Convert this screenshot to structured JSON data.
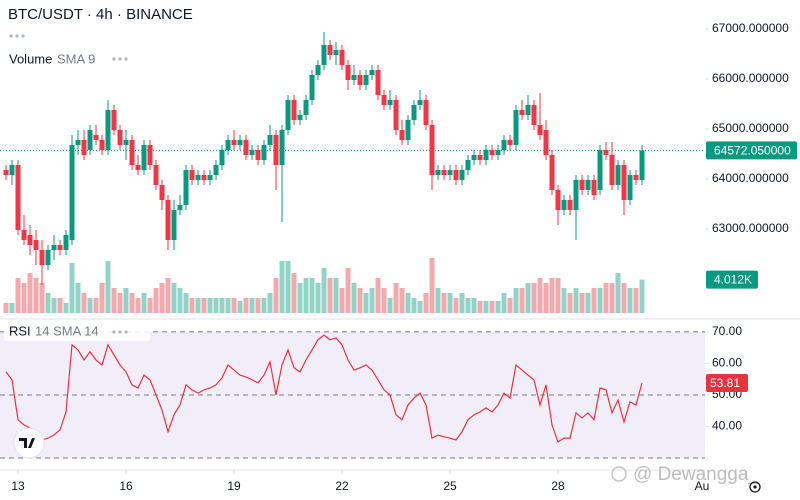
{
  "chart_data": [
    {
      "type": "candlestick",
      "title": "BTC/USDT · 4h · BINANCE",
      "volume_title": "Volume",
      "volume_subtitle": "SMA 9",
      "up_color": "#089981",
      "down_color": "#f23645",
      "volume_up_color": "#92d3c8",
      "volume_down_color": "#f3a9ad",
      "xlim": [
        -1,
        116.5
      ],
      "xticks": [
        {
          "value": 2,
          "label": "13"
        },
        {
          "value": 20,
          "label": "16"
        },
        {
          "value": 38,
          "label": "19"
        },
        {
          "value": 56,
          "label": "22"
        },
        {
          "value": 74,
          "label": "25"
        },
        {
          "value": 92,
          "label": "28"
        },
        {
          "value": 116,
          "label": "Au"
        }
      ],
      "ylim": [
        61320,
        67580
      ],
      "yticks": [
        {
          "value": 63000,
          "label": "63000.000000"
        },
        {
          "value": 64000,
          "label": "64000.000000"
        },
        {
          "value": 65000,
          "label": "65000.000000"
        },
        {
          "value": 66000,
          "label": "66000.000000"
        },
        {
          "value": 67000,
          "label": "67000.000000"
        }
      ],
      "volume_ylim": [
        0,
        12000
      ],
      "close_label": "64572.050000",
      "volume_label": "4.012K",
      "candles": [
        [
          64180,
          64280,
          63980,
          64080
        ],
        [
          64080,
          64380,
          63880,
          64280
        ],
        [
          64280,
          64380,
          62880,
          62980
        ],
        [
          62980,
          63280,
          62680,
          62780
        ],
        [
          62880,
          63080,
          62480,
          62680
        ],
        [
          62780,
          62980,
          62280,
          62580
        ],
        [
          62580,
          62780,
          61880,
          62280
        ],
        [
          62280,
          62680,
          62180,
          62580
        ],
        [
          62580,
          62880,
          62380,
          62680
        ],
        [
          62680,
          62780,
          62480,
          62580
        ],
        [
          62580,
          62980,
          62480,
          62880
        ],
        [
          62780,
          64880,
          62680,
          64680
        ],
        [
          64680,
          64980,
          64480,
          64780
        ],
        [
          64780,
          64980,
          64380,
          64480
        ],
        [
          64580,
          65080,
          64480,
          64980
        ],
        [
          64880,
          65080,
          64680,
          64780
        ],
        [
          64780,
          64880,
          64480,
          64580
        ],
        [
          64580,
          65580,
          64480,
          65380
        ],
        [
          65380,
          65480,
          64880,
          64980
        ],
        [
          64980,
          65080,
          64580,
          64680
        ],
        [
          64680,
          64980,
          64380,
          64780
        ],
        [
          64780,
          64880,
          64180,
          64280
        ],
        [
          64280,
          64480,
          64080,
          64180
        ],
        [
          64180,
          64780,
          64080,
          64680
        ],
        [
          64680,
          64780,
          64180,
          64280
        ],
        [
          64280,
          64380,
          63780,
          63880
        ],
        [
          63880,
          63980,
          63380,
          63580
        ],
        [
          63580,
          63680,
          62580,
          62780
        ],
        [
          62780,
          63580,
          62580,
          63380
        ],
        [
          63380,
          63680,
          63280,
          63480
        ],
        [
          63480,
          64280,
          63380,
          64180
        ],
        [
          64180,
          64280,
          63880,
          63980
        ],
        [
          63980,
          64180,
          63880,
          64080
        ],
        [
          64080,
          64180,
          63880,
          63980
        ],
        [
          63980,
          64180,
          63880,
          64080
        ],
        [
          64080,
          64380,
          63980,
          64280
        ],
        [
          64280,
          64680,
          64180,
          64580
        ],
        [
          64580,
          64880,
          64480,
          64780
        ],
        [
          64780,
          64980,
          64580,
          64680
        ],
        [
          64680,
          64880,
          64580,
          64780
        ],
        [
          64780,
          64880,
          64380,
          64480
        ],
        [
          64480,
          64680,
          64380,
          64580
        ],
        [
          64580,
          64680,
          64280,
          64380
        ],
        [
          64380,
          64780,
          64280,
          64680
        ],
        [
          64680,
          65080,
          64580,
          64880
        ],
        [
          64880,
          64980,
          63780,
          64280
        ],
        [
          64280,
          65080,
          63140,
          64980
        ],
        [
          64980,
          65680,
          64880,
          65580
        ],
        [
          65580,
          65680,
          65080,
          65180
        ],
        [
          65180,
          65380,
          65080,
          65280
        ],
        [
          65280,
          65680,
          65180,
          65580
        ],
        [
          65580,
          66180,
          65480,
          66080
        ],
        [
          66080,
          66380,
          65980,
          66280
        ],
        [
          66280,
          66940,
          66180,
          66680
        ],
        [
          66680,
          66780,
          66380,
          66480
        ],
        [
          66480,
          66740,
          66280,
          66580
        ],
        [
          66580,
          66680,
          66180,
          66280
        ],
        [
          66280,
          66380,
          65780,
          65980
        ],
        [
          65980,
          66280,
          65880,
          66080
        ],
        [
          66080,
          66180,
          65780,
          65880
        ],
        [
          65880,
          66180,
          65780,
          66080
        ],
        [
          66080,
          66280,
          65980,
          66180
        ],
        [
          66180,
          66280,
          65580,
          65680
        ],
        [
          65680,
          65780,
          65380,
          65480
        ],
        [
          65480,
          65780,
          65380,
          65580
        ],
        [
          65580,
          65680,
          64880,
          64980
        ],
        [
          64980,
          65180,
          64680,
          64780
        ],
        [
          64780,
          65280,
          64680,
          65180
        ],
        [
          65180,
          65580,
          65080,
          65480
        ],
        [
          65480,
          65780,
          65380,
          65580
        ],
        [
          65580,
          65680,
          64980,
          65080
        ],
        [
          65080,
          65180,
          63780,
          64080
        ],
        [
          64080,
          64280,
          63980,
          64180
        ],
        [
          64180,
          64280,
          63980,
          64080
        ],
        [
          64080,
          64280,
          63980,
          64180
        ],
        [
          64180,
          64280,
          63880,
          63980
        ],
        [
          63980,
          64280,
          63880,
          64180
        ],
        [
          64180,
          64480,
          64080,
          64380
        ],
        [
          64380,
          64580,
          64280,
          64480
        ],
        [
          64480,
          64580,
          64280,
          64380
        ],
        [
          64380,
          64680,
          64280,
          64580
        ],
        [
          64580,
          64680,
          64380,
          64480
        ],
        [
          64480,
          64680,
          64380,
          64580
        ],
        [
          64580,
          64880,
          64480,
          64780
        ],
        [
          64780,
          64880,
          64580,
          64680
        ],
        [
          64680,
          65480,
          64580,
          65380
        ],
        [
          65380,
          65580,
          65180,
          65280
        ],
        [
          65280,
          65680,
          65180,
          65480
        ],
        [
          65480,
          65580,
          64980,
          65080
        ],
        [
          65080,
          65720,
          64780,
          64880
        ],
        [
          64980,
          65180,
          64380,
          64480
        ],
        [
          64480,
          64580,
          63680,
          63780
        ],
        [
          63780,
          63880,
          63080,
          63380
        ],
        [
          63380,
          63680,
          63280,
          63580
        ],
        [
          63580,
          63680,
          63280,
          63380
        ],
        [
          63380,
          64080,
          62780,
          63980
        ],
        [
          63980,
          64080,
          63680,
          63780
        ],
        [
          63780,
          64080,
          63680,
          63980
        ],
        [
          63980,
          64080,
          63580,
          63680
        ],
        [
          63780,
          64680,
          63680,
          64580
        ],
        [
          64580,
          64740,
          64380,
          64480
        ],
        [
          64480,
          64740,
          63780,
          63880
        ],
        [
          63880,
          64380,
          63780,
          64280
        ],
        [
          64280,
          64380,
          63280,
          63580
        ],
        [
          63580,
          64180,
          63480,
          64080
        ],
        [
          64080,
          64180,
          63880,
          63980
        ],
        [
          63980,
          64680,
          63880,
          64572.05
        ]
      ],
      "volume": [
        1200,
        1200,
        4200,
        3600,
        4800,
        4200,
        3600,
        2400,
        1800,
        1800,
        1200,
        6000,
        3600,
        2400,
        1800,
        1800,
        3600,
        6240,
        3000,
        2400,
        3000,
        2400,
        1800,
        2400,
        1800,
        3000,
        3600,
        4200,
        3600,
        3000,
        2400,
        1800,
        1800,
        1800,
        1800,
        1800,
        1800,
        1800,
        1800,
        1440,
        1800,
        1800,
        1800,
        1800,
        2400,
        4200,
        6240,
        6240,
        4800,
        3600,
        4200,
        4200,
        3600,
        5400,
        4200,
        4200,
        3000,
        5400,
        3600,
        3000,
        2400,
        3000,
        4200,
        3000,
        1800,
        3600,
        3000,
        2400,
        1800,
        1440,
        2400,
        6600,
        3000,
        2400,
        2400,
        1800,
        2400,
        1800,
        1800,
        1440,
        1440,
        1440,
        1440,
        2400,
        1800,
        3000,
        3000,
        3600,
        3600,
        4200,
        3600,
        4200,
        4200,
        3000,
        2400,
        3000,
        2400,
        2400,
        3000,
        3000,
        3600,
        3600,
        4800,
        3600,
        3000,
        3000,
        4012
      ]
    },
    {
      "type": "line",
      "title": "RSI",
      "subtitle": "14 SMA 14",
      "color": "#e8323f",
      "band_color": "#ede7f6",
      "ylim": [
        28.4,
        72.2
      ],
      "yticks": [
        {
          "value": 40,
          "label": "40.00"
        },
        {
          "value": 50,
          "label": "50.00"
        },
        {
          "value": 60,
          "label": "60.00"
        },
        {
          "value": 70,
          "label": "70.00"
        }
      ],
      "bands": [
        30,
        50,
        70
      ],
      "values": [
        57.3,
        54.8,
        42.1,
        40.5,
        39.5,
        37.3,
        35.7,
        36.3,
        37.3,
        38.9,
        44.6,
        65.9,
        64.3,
        61.1,
        63.7,
        61.1,
        59.5,
        65.9,
        62.7,
        59.5,
        57.3,
        53.2,
        52.2,
        56.3,
        54.8,
        50.0,
        45.2,
        38.3,
        43.7,
        46.8,
        53.2,
        51.6,
        50.6,
        51.6,
        52.2,
        53.2,
        55.4,
        59.5,
        57.9,
        56.3,
        55.7,
        54.8,
        53.8,
        56.3,
        60.5,
        50.0,
        59.5,
        64.3,
        58.6,
        57.3,
        61.1,
        64.3,
        67.5,
        69.0,
        67.5,
        68.1,
        65.9,
        61.1,
        57.9,
        58.6,
        59.5,
        57.9,
        54.8,
        51.6,
        50.0,
        43.7,
        42.1,
        46.8,
        49.0,
        50.6,
        46.8,
        36.3,
        37.3,
        36.7,
        36.3,
        35.7,
        38.3,
        42.1,
        43.7,
        44.6,
        45.9,
        44.6,
        46.8,
        50.6,
        49.0,
        59.5,
        57.9,
        56.3,
        54.8,
        46.8,
        53.2,
        40.5,
        35.1,
        36.3,
        36.3,
        44.3,
        42.7,
        44.3,
        42.1,
        52.2,
        51.6,
        44.3,
        48.4,
        41.4,
        47.8,
        46.8,
        53.81
      ]
    }
  ],
  "watermark": "@ Dewangga_"
}
